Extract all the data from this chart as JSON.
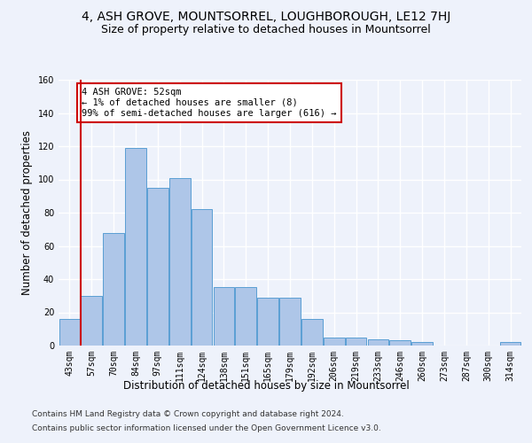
{
  "title": "4, ASH GROVE, MOUNTSORREL, LOUGHBOROUGH, LE12 7HJ",
  "subtitle": "Size of property relative to detached houses in Mountsorrel",
  "xlabel": "Distribution of detached houses by size in Mountsorrel",
  "ylabel": "Number of detached properties",
  "categories": [
    "43sqm",
    "57sqm",
    "70sqm",
    "84sqm",
    "97sqm",
    "111sqm",
    "124sqm",
    "138sqm",
    "151sqm",
    "165sqm",
    "179sqm",
    "192sqm",
    "206sqm",
    "219sqm",
    "233sqm",
    "246sqm",
    "260sqm",
    "273sqm",
    "287sqm",
    "300sqm",
    "314sqm"
  ],
  "values": [
    16,
    30,
    68,
    119,
    95,
    101,
    82,
    35,
    35,
    29,
    29,
    16,
    5,
    5,
    4,
    3,
    2,
    0,
    0,
    0,
    2
  ],
  "bar_color": "#aec6e8",
  "bar_edge_color": "#5a9fd4",
  "highlight_line_color": "#cc0000",
  "annotation_text": "4 ASH GROVE: 52sqm\n← 1% of detached houses are smaller (8)\n99% of semi-detached houses are larger (616) →",
  "annotation_box_color": "#ffffff",
  "annotation_box_edge_color": "#cc0000",
  "ylim": [
    0,
    160
  ],
  "yticks": [
    0,
    20,
    40,
    60,
    80,
    100,
    120,
    140,
    160
  ],
  "footer_line1": "Contains HM Land Registry data © Crown copyright and database right 2024.",
  "footer_line2": "Contains public sector information licensed under the Open Government Licence v3.0.",
  "background_color": "#eef2fb",
  "grid_color": "#ffffff",
  "title_fontsize": 10,
  "subtitle_fontsize": 9,
  "axis_label_fontsize": 8.5,
  "tick_fontsize": 7,
  "footer_fontsize": 6.5,
  "annotation_fontsize": 7.5
}
